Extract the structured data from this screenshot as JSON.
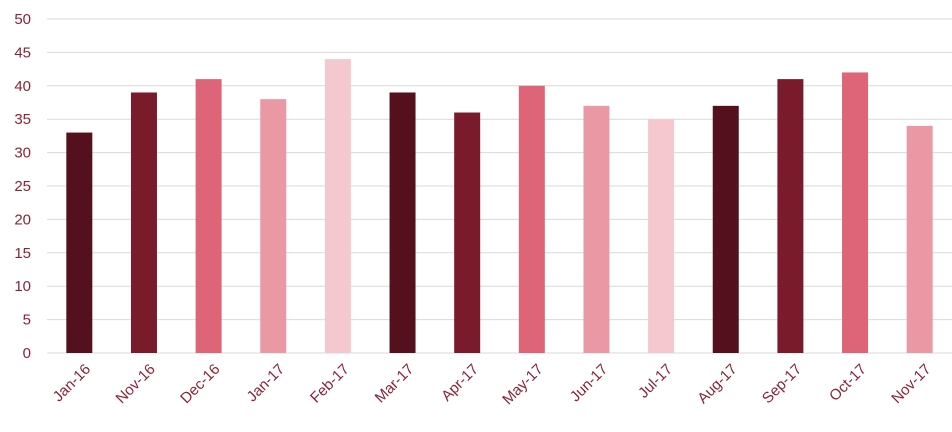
{
  "chart_data": {
    "type": "bar",
    "title": "",
    "xlabel": "",
    "ylabel": "",
    "categories": [
      "Jan-16",
      "Nov-16",
      "Dec-16",
      "Jan-17",
      "Feb-17",
      "Mar-17",
      "Apr-17",
      "May-17",
      "Jun-17",
      "Jul-17",
      "Aug-17",
      "Sep-17",
      "Oct-17",
      "Nov-17"
    ],
    "values": [
      33,
      39,
      41,
      38,
      44,
      39,
      36,
      40,
      37,
      35,
      37,
      41,
      42,
      34
    ],
    "ylim": [
      0,
      50
    ],
    "yticks": [
      0,
      5,
      10,
      15,
      20,
      25,
      30,
      35,
      40,
      45,
      50
    ],
    "grid": true,
    "legend": "none",
    "colors": [
      "#54111d",
      "#7a1b2b",
      "#de6477",
      "#eb98a5",
      "#f5c8d0",
      "#54111d",
      "#7a1b2b",
      "#de6477",
      "#eb98a5",
      "#f5c8d0",
      "#54111d",
      "#7a1b2b",
      "#de6477",
      "#eb98a5"
    ]
  }
}
